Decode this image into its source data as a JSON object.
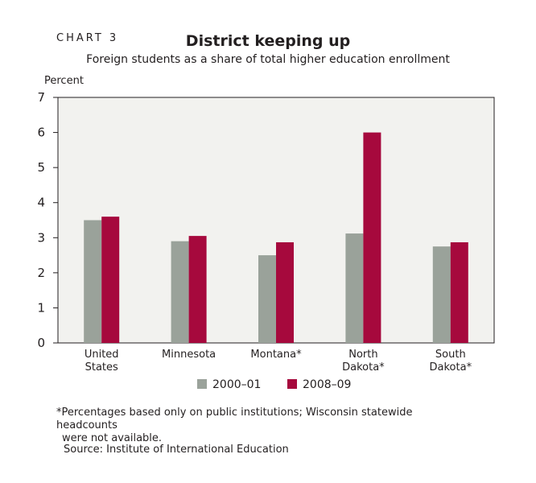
{
  "chart_label": "CHART 3",
  "footnote_line1": "*Percentages based only on public institutions; Wisconsin statewide headcounts",
  "footnote_line2": "were not available.",
  "source": "Source: Institute of International Education",
  "chart_data": {
    "type": "bar",
    "title": "District keeping up",
    "subtitle": "Foreign students as a share of total higher education enrollment",
    "ylabel": "Percent",
    "xlabel": "",
    "ylim": [
      0,
      7
    ],
    "yticks": [
      0,
      1,
      2,
      3,
      4,
      5,
      6,
      7
    ],
    "grid": false,
    "legend_position": "bottom",
    "categories": [
      [
        "United",
        "States"
      ],
      [
        "Minnesota"
      ],
      [
        "Montana*"
      ],
      [
        "North",
        "Dakota*"
      ],
      [
        "South",
        "Dakota*"
      ]
    ],
    "series": [
      {
        "name": "2000–01",
        "color": "#9aa29a",
        "values": [
          3.5,
          2.9,
          2.5,
          3.12,
          2.75
        ]
      },
      {
        "name": "2008–09",
        "color": "#a6093d",
        "values": [
          3.6,
          3.05,
          2.87,
          6.0,
          2.87
        ]
      }
    ],
    "plot_background": "#f2f2ef"
  }
}
